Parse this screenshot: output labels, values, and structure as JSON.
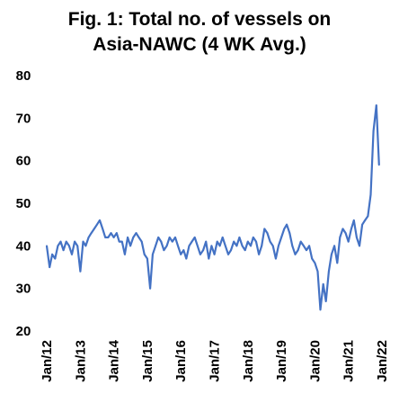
{
  "chart_data": {
    "type": "line",
    "title_lines": [
      "Fig. 1: Total no. of vessels on",
      "Asia-NAWC (4 WK Avg.)"
    ],
    "xlabel": "",
    "ylabel": "",
    "ylim": [
      20,
      80
    ],
    "yticks": [
      20,
      30,
      40,
      50,
      60,
      70,
      80
    ],
    "x_range": [
      "2012-01-01",
      "2022-01-01"
    ],
    "xtick_labels": [
      "Jan/12",
      "Jan/13",
      "Jan/14",
      "Jan/15",
      "Jan/16",
      "Jan/17",
      "Jan/18",
      "Jan/19",
      "Jan/20",
      "Jan/21",
      "Jan/22"
    ],
    "grid": false,
    "legend": "none",
    "color": "#4472C4",
    "series": [
      {
        "x": [
          "2012-01-01",
          "2012-02-01",
          "2012-03-01",
          "2012-04-01",
          "2012-05-01",
          "2012-06-01",
          "2012-07-01",
          "2012-08-01",
          "2012-09-01",
          "2012-10-01",
          "2012-11-01",
          "2012-12-01",
          "2013-01-01",
          "2013-02-01",
          "2013-03-01",
          "2013-04-01",
          "2013-05-01",
          "2013-06-01",
          "2013-07-01",
          "2013-08-01",
          "2013-09-01",
          "2013-10-01",
          "2013-11-01",
          "2013-12-01",
          "2014-01-01",
          "2014-02-01",
          "2014-03-01",
          "2014-04-01",
          "2014-05-01",
          "2014-06-01",
          "2014-07-01",
          "2014-08-01",
          "2014-09-01",
          "2014-10-01",
          "2014-11-01",
          "2014-12-01",
          "2015-01-01",
          "2015-02-01",
          "2015-03-01",
          "2015-04-01",
          "2015-05-01",
          "2015-06-01",
          "2015-07-01",
          "2015-08-01",
          "2015-09-01",
          "2015-10-01",
          "2015-11-01",
          "2015-12-01",
          "2016-01-01",
          "2016-02-01",
          "2016-03-01",
          "2016-04-01",
          "2016-05-01",
          "2016-06-01",
          "2016-07-01",
          "2016-08-01",
          "2016-09-01",
          "2016-10-01",
          "2016-11-01",
          "2016-12-01",
          "2017-01-01",
          "2017-02-01",
          "2017-03-01",
          "2017-04-01",
          "2017-05-01",
          "2017-06-01",
          "2017-07-01",
          "2017-08-01",
          "2017-09-01",
          "2017-10-01",
          "2017-11-01",
          "2017-12-01",
          "2018-01-01",
          "2018-02-01",
          "2018-03-01",
          "2018-04-01",
          "2018-05-01",
          "2018-06-01",
          "2018-07-01",
          "2018-08-01",
          "2018-09-01",
          "2018-10-01",
          "2018-11-01",
          "2018-12-01",
          "2019-01-01",
          "2019-02-01",
          "2019-03-01",
          "2019-04-01",
          "2019-05-01",
          "2019-06-01",
          "2019-07-01",
          "2019-08-01",
          "2019-09-01",
          "2019-10-01",
          "2019-11-01",
          "2019-12-01",
          "2020-01-01",
          "2020-02-01",
          "2020-03-01",
          "2020-04-01",
          "2020-05-01",
          "2020-06-01",
          "2020-07-01",
          "2020-08-01",
          "2020-09-01",
          "2020-10-01",
          "2020-11-01",
          "2020-12-01",
          "2021-01-01",
          "2021-02-01",
          "2021-03-01",
          "2021-04-01",
          "2021-05-01",
          "2021-06-01",
          "2021-07-01",
          "2021-08-01",
          "2021-09-01",
          "2021-10-01",
          "2021-11-01",
          "2021-12-01"
        ],
        "y": [
          40,
          35,
          38,
          37,
          40,
          41,
          39,
          41,
          40,
          38,
          41,
          40,
          34,
          41,
          40,
          42,
          43,
          44,
          45,
          46,
          44,
          42,
          42,
          43,
          42,
          43,
          41,
          41,
          38,
          42,
          40,
          42,
          43,
          42,
          41,
          38,
          37,
          30,
          38,
          40,
          42,
          41,
          39,
          40,
          42,
          41,
          42,
          40,
          38,
          39,
          37,
          40,
          41,
          42,
          40,
          38,
          39,
          41,
          37,
          40,
          38,
          41,
          40,
          42,
          40,
          38,
          39,
          41,
          40,
          42,
          40,
          39,
          41,
          40,
          42,
          41,
          38,
          40,
          44,
          43,
          41,
          40,
          37,
          40,
          42,
          44,
          45,
          43,
          40,
          38,
          39,
          41,
          40,
          39,
          40,
          37,
          36,
          34,
          25,
          31,
          27,
          34,
          38,
          40,
          36,
          42,
          44,
          43,
          41,
          44,
          46,
          42,
          40,
          45,
          46,
          47,
          52,
          67,
          73,
          59
        ]
      }
    ]
  }
}
